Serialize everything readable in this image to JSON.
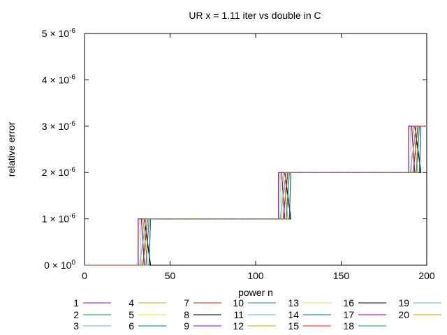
{
  "chart_data": {
    "type": "line",
    "title": "UR x = 1.11 iter vs double in C",
    "xlabel": "power n",
    "ylabel": "relative error",
    "xlim": [
      0,
      200
    ],
    "ylim": [
      0,
      5e-06
    ],
    "xticks": [
      0,
      50,
      100,
      150,
      200
    ],
    "yticks": [
      {
        "value": 0,
        "mantissa": "0",
        "exp": "0"
      },
      {
        "value": 1e-06,
        "mantissa": "1",
        "exp": "-6"
      },
      {
        "value": 2e-06,
        "mantissa": "2",
        "exp": "-6"
      },
      {
        "value": 3e-06,
        "mantissa": "3",
        "exp": "-6"
      },
      {
        "value": 4e-06,
        "mantissa": "4",
        "exp": "-6"
      },
      {
        "value": 5e-06,
        "mantissa": "5",
        "exp": "-6"
      }
    ],
    "times_sign": "×",
    "exp_base": "10",
    "grid": false,
    "legend_position": "bottom",
    "legend_columns": 7,
    "colors": [
      "#9400d3",
      "#009e73",
      "#56b4e9",
      "#e69f00",
      "#f0e442",
      "#0072b2",
      "#e51e10",
      "#000000"
    ],
    "series_names": [
      "1",
      "2",
      "3",
      "4",
      "5",
      "6",
      "7",
      "8",
      "9",
      "10",
      "11",
      "12",
      "13",
      "14",
      "15",
      "16",
      "17",
      "18",
      "19",
      "20"
    ],
    "levels": [
      {
        "x_from": 0,
        "x_to": 35,
        "y": 0
      },
      {
        "x_from": 35,
        "x_to": 117,
        "y": 1e-06
      },
      {
        "x_from": 117,
        "x_to": 193,
        "y": 2e-06
      },
      {
        "x_from": 193,
        "x_to": 200,
        "y": 3e-06
      }
    ]
  }
}
